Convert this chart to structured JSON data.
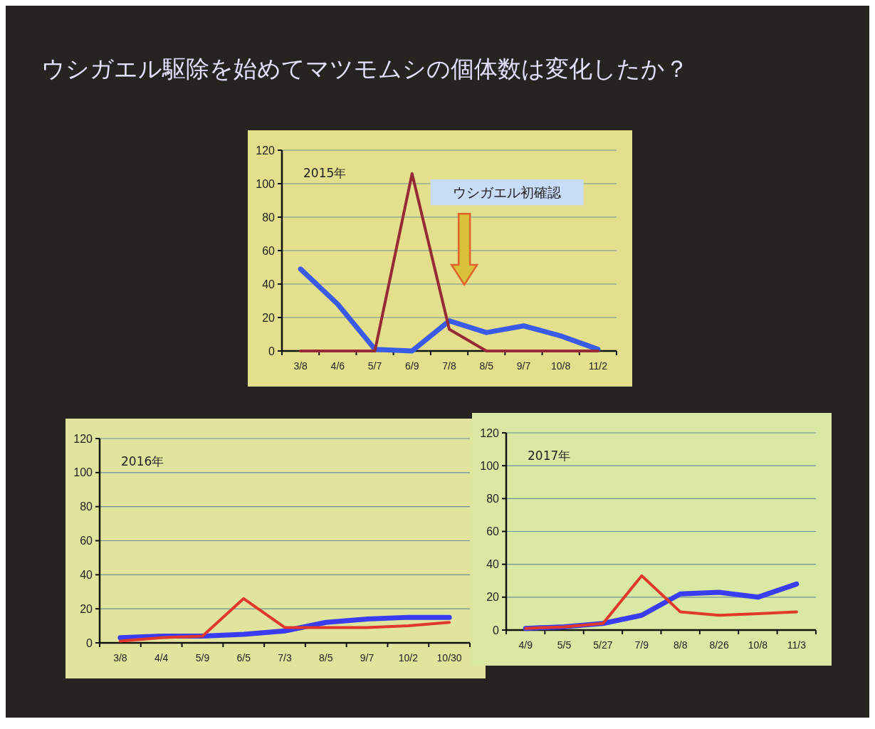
{
  "chart_data": [
    {
      "type": "line",
      "title": "ウシガエル駆除を始めてマツモムシの個体数は変化したか？",
      "annotations": [
        "2015年",
        "ウシガエル初確認"
      ],
      "categories": [
        "3/8",
        "4/6",
        "5/7",
        "6/9",
        "7/8",
        "8/5",
        "9/7",
        "10/8",
        "11/2"
      ],
      "series": [
        {
          "color": "#3a5be8",
          "values": [
            49,
            28,
            1,
            0,
            18,
            11,
            15,
            9,
            1
          ]
        },
        {
          "color": "#962a35",
          "values": [
            0,
            0,
            0,
            106,
            13,
            0,
            0,
            0,
            0
          ]
        }
      ],
      "ylim": [
        0,
        120
      ],
      "yticks": [
        0,
        20,
        40,
        60,
        80,
        100,
        120
      ],
      "grid": "y"
    },
    {
      "type": "line",
      "annotations": [
        "2016年"
      ],
      "categories": [
        "3/8",
        "4/4",
        "5/9",
        "6/5",
        "7/3",
        "8/5",
        "9/7",
        "10/2",
        "10/30"
      ],
      "series": [
        {
          "color": "#3a3cf2",
          "values": [
            3,
            4,
            4,
            5,
            7,
            12,
            14,
            15,
            15
          ]
        },
        {
          "color": "#e0392b",
          "values": [
            1,
            3,
            4,
            26,
            9,
            9,
            9,
            10,
            12
          ]
        }
      ],
      "ylim": [
        0,
        120
      ],
      "yticks": [
        0,
        20,
        40,
        60,
        80,
        100,
        120
      ],
      "grid": "y"
    },
    {
      "type": "line",
      "annotations": [
        "2017年"
      ],
      "categories": [
        "4/9",
        "5/5",
        "5/27",
        "7/9",
        "8/8",
        "8/26",
        "10/8",
        "11/3"
      ],
      "series": [
        {
          "color": "#3a3cf2",
          "values": [
            1,
            2,
            4,
            9,
            22,
            23,
            20,
            28
          ]
        },
        {
          "color": "#e0392b",
          "values": [
            1,
            2,
            4,
            33,
            11,
            9,
            10,
            11
          ]
        }
      ],
      "ylim": [
        0,
        120
      ],
      "yticks": [
        0,
        20,
        40,
        60,
        80,
        100,
        120
      ],
      "grid": "y"
    }
  ]
}
